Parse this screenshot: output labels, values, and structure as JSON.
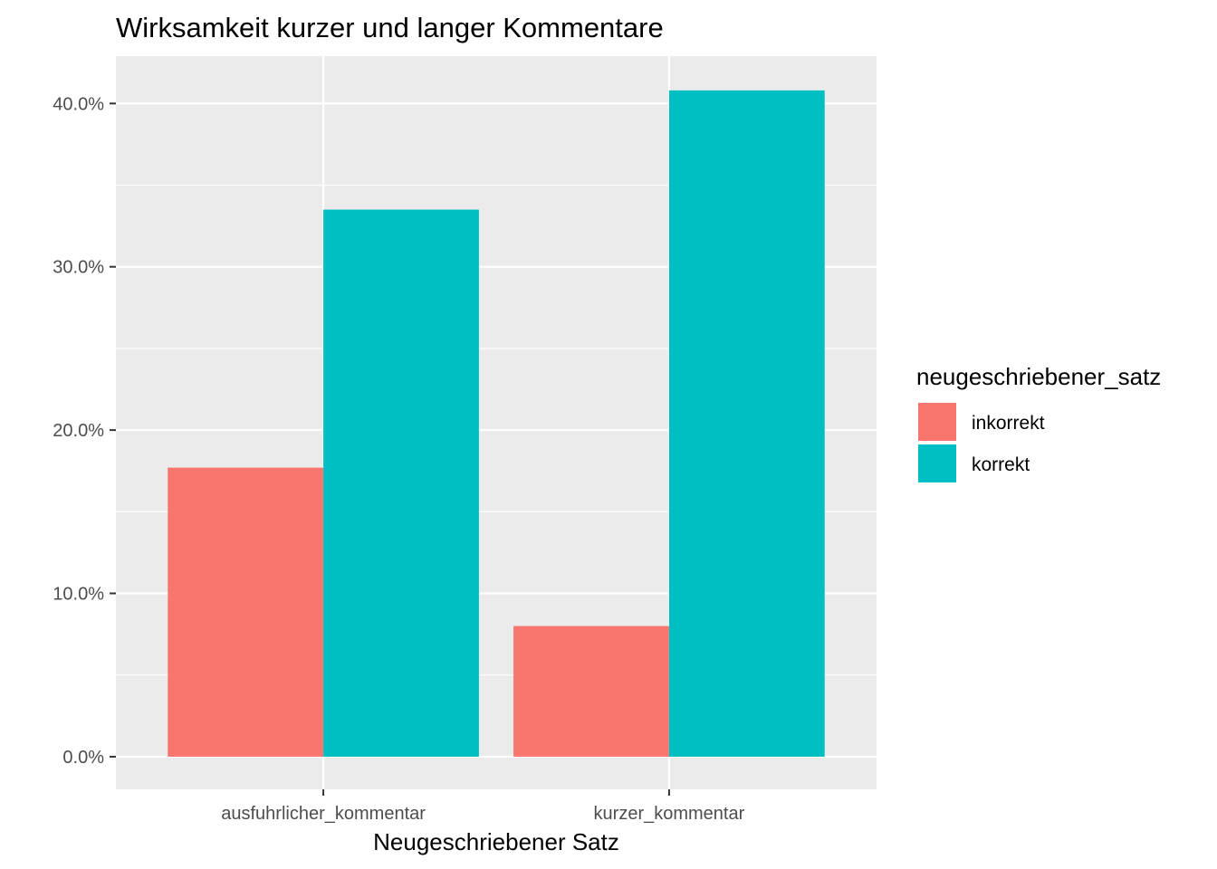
{
  "chart_data": {
    "type": "bar",
    "title": "Wirksamkeit kurzer und langer Kommentare",
    "xlabel": "Neugeschriebener Satz",
    "ylabel": "",
    "categories": [
      "ausfuhrlicher_kommentar",
      "kurzer_kommentar"
    ],
    "series": [
      {
        "name": "inkorrekt",
        "values": [
          17.7,
          8.0
        ],
        "color": "#F8766D"
      },
      {
        "name": "korrekt",
        "values": [
          33.5,
          40.8
        ],
        "color": "#00BFC4"
      }
    ],
    "ylim": [
      -2.0,
      42.9
    ],
    "y_ticks": [
      0,
      10,
      20,
      30,
      40
    ],
    "y_tick_labels": [
      "0.0%",
      "10.0%",
      "20.0%",
      "30.0%",
      "40.0%"
    ],
    "grid": true,
    "legend": {
      "title": "neugeschriebener_satz",
      "position": "right"
    },
    "panel_color": "#EBEBEB"
  }
}
